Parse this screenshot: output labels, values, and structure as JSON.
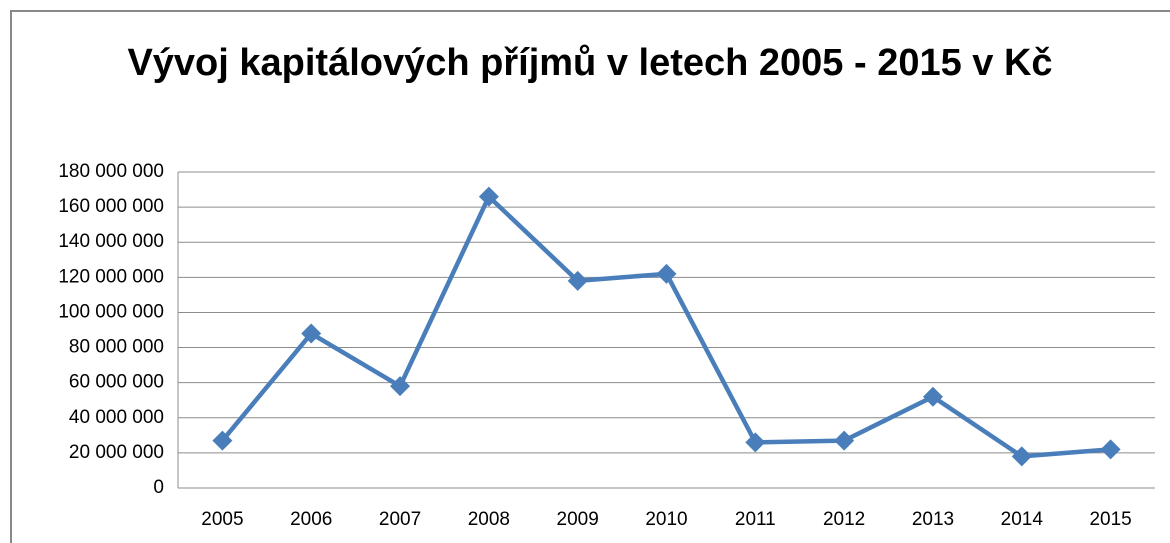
{
  "chart_data": {
    "type": "line",
    "title": "Vývoj kapitálových příjmů v letech 2005 - 2015 v Kč",
    "categories": [
      "2005",
      "2006",
      "2007",
      "2008",
      "2009",
      "2010",
      "2011",
      "2012",
      "2013",
      "2014",
      "2015"
    ],
    "values": [
      27000000,
      88000000,
      58000000,
      166000000,
      118000000,
      122000000,
      26000000,
      27000000,
      52000000,
      18000000,
      22000000
    ],
    "color": "#4a7ebb",
    "ylim": [
      0,
      180000000
    ],
    "yticks": [
      0,
      {
        "value": 20000000,
        "label": "20 000 000"
      },
      {
        "value": 40000000,
        "label": "40 000 000"
      },
      {
        "value": 60000000,
        "label": "60 000 000"
      },
      {
        "value": 80000000,
        "label": "80 000 000"
      },
      {
        "value": 100000000,
        "label": "100 000 000"
      },
      {
        "value": 120000000,
        "label": "120 000 000"
      },
      {
        "value": 140000000,
        "label": "140 000 000"
      },
      {
        "value": 160000000,
        "label": "160 000 000"
      },
      {
        "value": 180000000,
        "label": "180 000 000"
      }
    ],
    "grid": true
  }
}
